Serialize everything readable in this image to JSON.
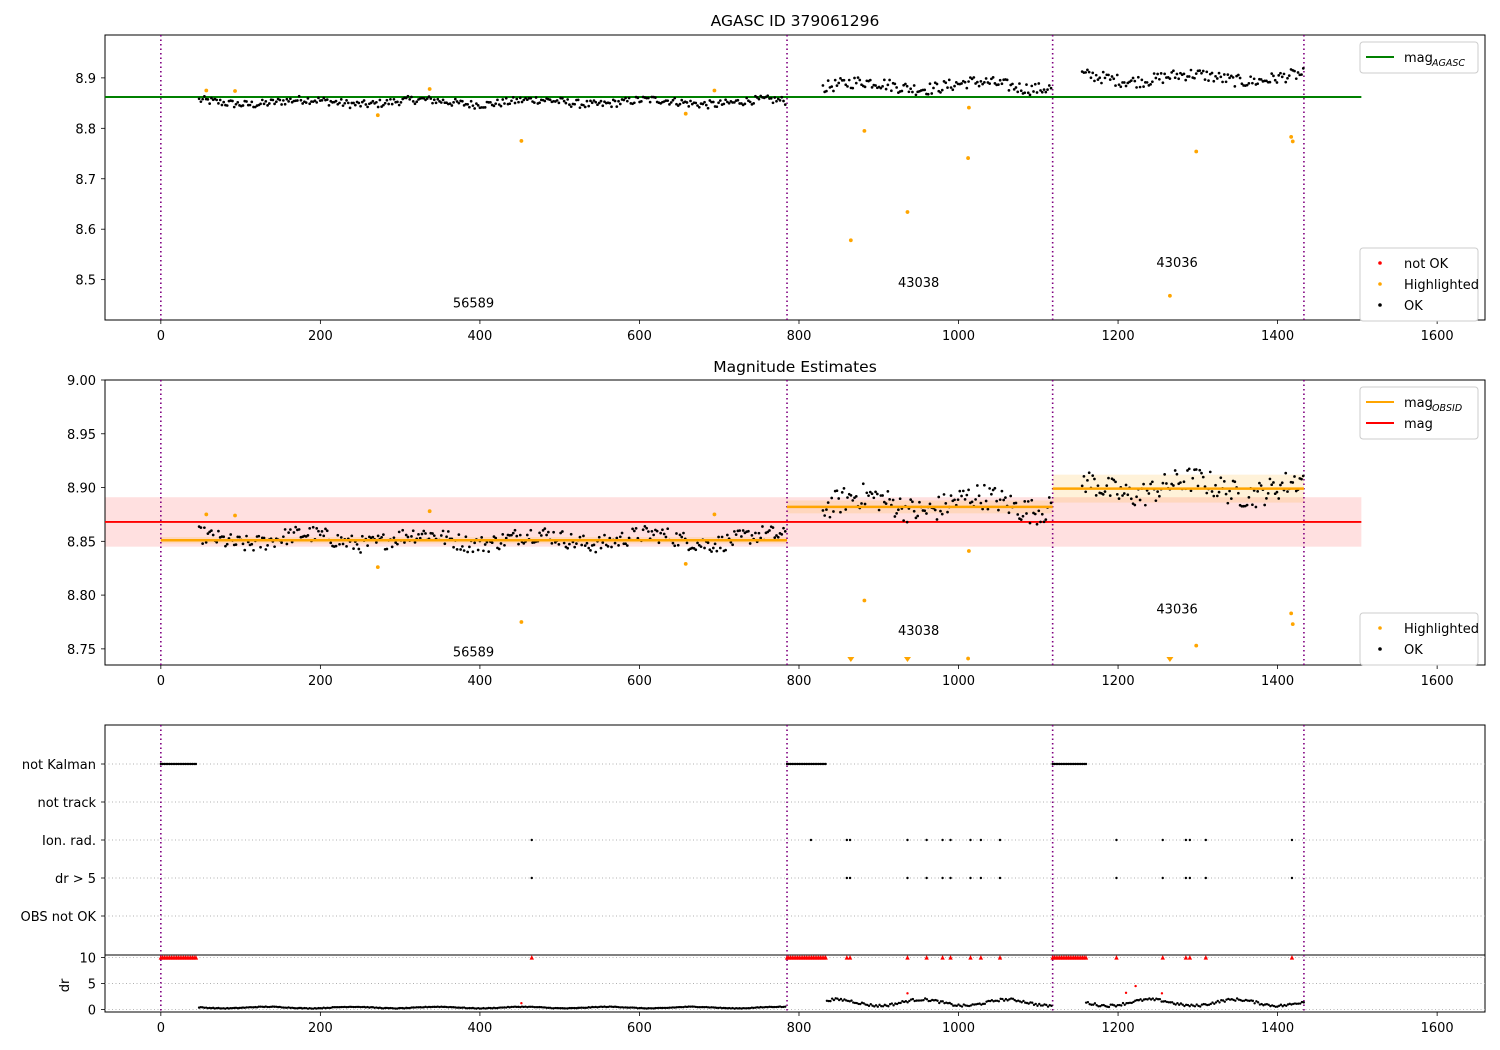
{
  "chart_data": [
    {
      "type": "scatter",
      "title": "AGASC ID 379061296",
      "xlim": [
        -70,
        1660
      ],
      "ylim": [
        8.42,
        8.985
      ],
      "x_ticks": [
        0,
        200,
        400,
        600,
        800,
        1000,
        1200,
        1400,
        1600
      ],
      "y_ticks": [
        8.5,
        8.6,
        8.7,
        8.8,
        8.9
      ],
      "x_tick_labels": [
        "0",
        "200",
        "400",
        "600",
        "800",
        "1000",
        "1200",
        "1400",
        "1600"
      ],
      "y_tick_labels": [
        "8.5",
        "8.6",
        "8.7",
        "8.8",
        "8.9"
      ],
      "obsid_boundaries": [
        0,
        785,
        1118,
        1433
      ],
      "obsid_labels": [
        {
          "text": "56589",
          "x": 392,
          "y": 8.445
        },
        {
          "text": "43038",
          "x": 950,
          "y": 8.485
        },
        {
          "text": "43036",
          "x": 1274,
          "y": 8.525
        }
      ],
      "reference_lines": [
        {
          "name": "mag_AGASC",
          "y": 8.862,
          "x_range": [
            -70,
            1505
          ],
          "color": "#008000"
        }
      ],
      "segments": [
        {
          "x_range": [
            48,
            785
          ],
          "center": 8.852,
          "noise": 0.008
        },
        {
          "x_range": [
            830,
            1118
          ],
          "center": 8.885,
          "noise": 0.012
        },
        {
          "x_range": [
            1155,
            1433
          ],
          "center": 8.9,
          "noise": 0.012
        }
      ],
      "highlighted_points": [
        [
          57,
          8.875
        ],
        [
          93,
          8.874
        ],
        [
          272,
          8.826
        ],
        [
          337,
          8.878
        ],
        [
          452,
          8.775
        ],
        [
          658,
          8.829
        ],
        [
          694,
          8.875
        ],
        [
          865,
          8.578
        ],
        [
          882,
          8.795
        ],
        [
          936,
          8.634
        ],
        [
          1012,
          8.741
        ],
        [
          1013,
          8.841
        ],
        [
          1265,
          8.468
        ],
        [
          1298,
          8.754
        ],
        [
          1417,
          8.783
        ],
        [
          1419,
          8.774
        ]
      ],
      "series": [
        {
          "name": "not OK",
          "color": "#ff0000"
        },
        {
          "name": "Highlighted",
          "color": "#ffa500"
        },
        {
          "name": "OK",
          "color": "#000000"
        }
      ],
      "legends": [
        {
          "position": "upper-right",
          "items": [
            {
              "label": "mag",
              "subscript": "AGASC",
              "color": "#008000",
              "kind": "line"
            }
          ]
        },
        {
          "position": "lower-right",
          "items": [
            {
              "label": "not OK",
              "color": "#ff0000",
              "kind": "dot"
            },
            {
              "label": "Highlighted",
              "color": "#ffa500",
              "kind": "dot"
            },
            {
              "label": "OK",
              "color": "#000000",
              "kind": "dot"
            }
          ]
        }
      ]
    },
    {
      "type": "scatter",
      "title": "Magnitude Estimates",
      "xlim": [
        -70,
        1660
      ],
      "ylim": [
        8.735,
        9.0
      ],
      "x_ticks": [
        0,
        200,
        400,
        600,
        800,
        1000,
        1200,
        1400,
        1600
      ],
      "y_ticks": [
        8.75,
        8.8,
        8.85,
        8.9,
        8.95,
        9.0
      ],
      "x_tick_labels": [
        "0",
        "200",
        "400",
        "600",
        "800",
        "1000",
        "1200",
        "1400",
        "1600"
      ],
      "y_tick_labels": [
        "8.75",
        "8.80",
        "8.85",
        "8.90",
        "8.95",
        "9.00"
      ],
      "obsid_boundaries": [
        0,
        785,
        1118,
        1433
      ],
      "obsid_labels": [
        {
          "text": "56589",
          "x": 392,
          "y": 8.743
        },
        {
          "text": "43038",
          "x": 950,
          "y": 8.763
        },
        {
          "text": "43036",
          "x": 1274,
          "y": 8.783
        }
      ],
      "mag_line": {
        "name": "mag",
        "y": 8.868,
        "band": [
          8.845,
          8.891
        ],
        "x_range": [
          -70,
          1505
        ],
        "color": "#ff0000"
      },
      "obsid_mags": [
        {
          "x_range": [
            0,
            785
          ],
          "y": 8.851,
          "band": [
            8.848,
            8.854
          ]
        },
        {
          "x_range": [
            785,
            1118
          ],
          "y": 8.882,
          "band": [
            8.876,
            8.888
          ]
        },
        {
          "x_range": [
            1118,
            1433
          ],
          "y": 8.899,
          "band": [
            8.886,
            8.912
          ]
        }
      ],
      "segments": [
        {
          "x_range": [
            48,
            785
          ],
          "center": 8.852,
          "noise": 0.008
        },
        {
          "x_range": [
            830,
            1118
          ],
          "center": 8.885,
          "noise": 0.012
        },
        {
          "x_range": [
            1155,
            1433
          ],
          "center": 8.9,
          "noise": 0.012
        }
      ],
      "highlighted_points": [
        [
          57,
          8.875
        ],
        [
          93,
          8.874
        ],
        [
          272,
          8.826
        ],
        [
          337,
          8.878
        ],
        [
          452,
          8.775
        ],
        [
          658,
          8.829
        ],
        [
          694,
          8.875
        ],
        [
          882,
          8.795
        ],
        [
          1013,
          8.841
        ],
        [
          1012,
          8.741
        ],
        [
          1298,
          8.753
        ],
        [
          1417,
          8.783
        ],
        [
          1419,
          8.773
        ]
      ],
      "offscale_markers": [
        865,
        936,
        1265
      ],
      "legends": [
        {
          "position": "upper-right",
          "items": [
            {
              "label": "mag",
              "subscript": "OBSID",
              "color": "#ffa500",
              "kind": "line"
            },
            {
              "label": "mag",
              "color": "#ff0000",
              "kind": "line"
            }
          ]
        },
        {
          "position": "lower-right",
          "items": [
            {
              "label": "Highlighted",
              "color": "#ffa500",
              "kind": "dot"
            },
            {
              "label": "OK",
              "color": "#000000",
              "kind": "dot"
            }
          ]
        }
      ]
    },
    {
      "type": "scatter",
      "title": "",
      "xlim": [
        -70,
        1660
      ],
      "categories": [
        "not Kalman",
        "not track",
        "Ion. rad.",
        "dr > 5",
        "OBS not OK"
      ],
      "obsid_boundaries": [
        0,
        785,
        1118,
        1433
      ],
      "flag_ranges": {
        "not Kalman": [
          [
            0,
            45
          ],
          [
            785,
            835
          ],
          [
            1118,
            1160
          ]
        ]
      },
      "flag_points": {
        "Ion. rad.": [
          465,
          815,
          860,
          864,
          936,
          960,
          980,
          990,
          1015,
          1028,
          1052,
          1198,
          1256,
          1285,
          1290,
          1310,
          1418
        ],
        "dr > 5": [
          465,
          860,
          864,
          936,
          960,
          980,
          990,
          1015,
          1028,
          1052,
          1198,
          1256,
          1285,
          1290,
          1310,
          1418
        ]
      }
    },
    {
      "type": "scatter",
      "title": "",
      "ylabel": "dr",
      "xlim": [
        -70,
        1660
      ],
      "ylim": [
        -0.5,
        10.5
      ],
      "x_ticks": [
        0,
        200,
        400,
        600,
        800,
        1000,
        1200,
        1400,
        1600
      ],
      "y_ticks": [
        0,
        5,
        10
      ],
      "x_tick_labels": [
        "0",
        "200",
        "400",
        "600",
        "800",
        "1000",
        "1200",
        "1400",
        "1600"
      ],
      "y_tick_labels": [
        "0",
        "5",
        "10"
      ],
      "obsid_boundaries": [
        0,
        785,
        1118,
        1433
      ],
      "clipped_value": 10,
      "clipped_ranges": [
        [
          0,
          45
        ],
        [
          785,
          835
        ],
        [
          1118,
          1160
        ]
      ],
      "clipped_points": [
        465,
        860,
        864,
        936,
        960,
        980,
        990,
        1015,
        1028,
        1052,
        1198,
        1256,
        1285,
        1290,
        1310,
        1418
      ],
      "segments": [
        {
          "x_range": [
            48,
            785
          ],
          "center": 0.35,
          "noise": 0.15
        },
        {
          "x_range": [
            835,
            1118
          ],
          "center": 1.3,
          "noise": 0.6
        },
        {
          "x_range": [
            1160,
            1433
          ],
          "center": 1.3,
          "noise": 0.6
        }
      ],
      "outlier_points": [
        [
          452,
          1.2
        ],
        [
          936,
          3.1
        ],
        [
          1210,
          3.2
        ],
        [
          1222,
          4.5
        ],
        [
          1255,
          3.1
        ]
      ]
    }
  ]
}
